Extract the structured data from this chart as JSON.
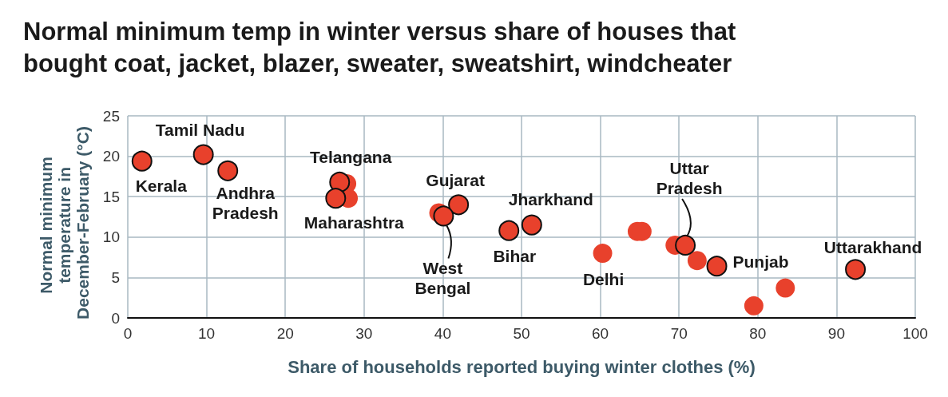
{
  "chart_data": {
    "type": "scatter",
    "title": "Normal minimum temp in winter versus share of houses that bought coat, jacket, blazer, sweater, sweatshirt, windcheater",
    "xlabel": "Share of households reported buying winter clothes (%)",
    "ylabel": "Normal minimum temperature in December-February (°C)",
    "xlim": [
      0,
      100
    ],
    "xticks": [
      0,
      10,
      20,
      30,
      40,
      50,
      60,
      70,
      80,
      90,
      100
    ],
    "ylim": [
      0,
      25
    ],
    "yticks": [
      0,
      5,
      10,
      15,
      20,
      25
    ],
    "grid": true,
    "marker": "circle",
    "series": [
      {
        "color": "#e8412c",
        "x": [
          1.8,
          9.6,
          12.7,
          26.9,
          26.4,
          42.0,
          40.1,
          48.4,
          51.3,
          70.8,
          74.8,
          92.4
        ],
        "values": [
          19.4,
          20.2,
          18.2,
          16.8,
          14.8,
          14.0,
          12.6,
          10.8,
          11.5,
          9.0,
          6.4,
          6.0
        ]
      },
      {
        "color": "#e8412c",
        "x": [
          27.8,
          28.0,
          39.5,
          64.7,
          65.3,
          60.3,
          69.5,
          72.3,
          79.5,
          83.5
        ],
        "values": [
          16.6,
          14.8,
          13.0,
          10.7,
          10.7,
          8.0,
          9.0,
          7.1,
          1.5,
          3.7
        ]
      }
    ],
    "annotations": [
      {
        "text": "Kerala",
        "x": 1.8,
        "y": 19.4
      },
      {
        "text": "Tamil Nadu",
        "x": 9.6,
        "y": 20.2
      },
      {
        "text": "Andhra\nPradesh",
        "x": 12.7,
        "y": 18.2
      },
      {
        "text": "Telangana",
        "x": 26.9,
        "y": 16.8
      },
      {
        "text": "Maharashtra",
        "x": 26.4,
        "y": 14.8
      },
      {
        "text": "Gujarat",
        "x": 42.0,
        "y": 14.0
      },
      {
        "text": "West\nBengal",
        "x": 40.1,
        "y": 12.6
      },
      {
        "text": "Bihar",
        "x": 48.4,
        "y": 10.8
      },
      {
        "text": "Jharkhand",
        "x": 51.3,
        "y": 11.5
      },
      {
        "text": "Delhi",
        "x": 60.3,
        "y": 8.0
      },
      {
        "text": "Uttar\nPradesh",
        "x": 70.8,
        "y": 9.0
      },
      {
        "text": "Punjab",
        "x": 74.8,
        "y": 6.4
      },
      {
        "text": "Uttarakhand",
        "x": 92.4,
        "y": 6.0
      }
    ]
  }
}
